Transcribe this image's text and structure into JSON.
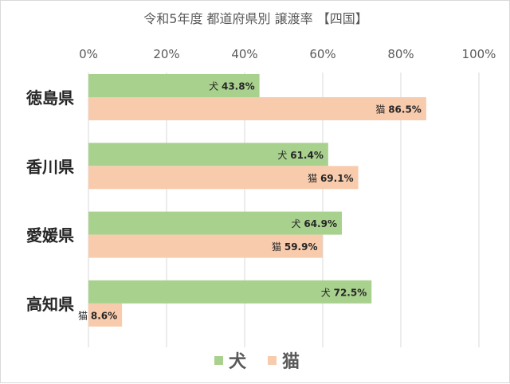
{
  "chart_data": {
    "type": "bar",
    "orientation": "horizontal",
    "title": "令和5年度 都道府県別 譲渡率 【四国】",
    "categories": [
      "徳島県",
      "香川県",
      "愛媛県",
      "高知県"
    ],
    "series": [
      {
        "name": "犬",
        "values": [
          43.8,
          61.4,
          64.9,
          72.5
        ],
        "labels": [
          "43.8%",
          "61.4%",
          "64.9%",
          "72.5%"
        ],
        "color": "#a9d18e"
      },
      {
        "name": "猫",
        "values": [
          86.5,
          69.1,
          59.9,
          8.6
        ],
        "labels": [
          "86.5%",
          "69.1%",
          "59.9%",
          "8.6%"
        ],
        "color": "#f8cbad"
      }
    ],
    "xlim": [
      0,
      100
    ],
    "xticks": [
      0,
      20,
      40,
      60,
      80,
      100
    ],
    "xtick_labels": [
      "0%",
      "20%",
      "40%",
      "60%",
      "80%",
      "100%"
    ],
    "x_axis_position": "top",
    "grid": true,
    "legend_position": "bottom",
    "gridline_color": "#d9d9d9"
  }
}
